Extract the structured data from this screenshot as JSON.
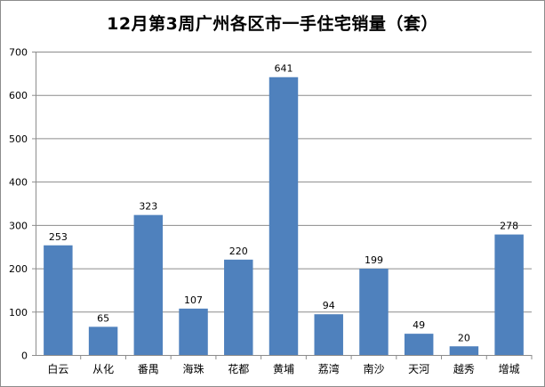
{
  "chart_data": {
    "type": "bar",
    "title": "12月第3周广州各区市一手住宅销量（套）",
    "categories": [
      "白云",
      "从化",
      "番禺",
      "海珠",
      "花都",
      "黄埔",
      "荔湾",
      "南沙",
      "天河",
      "越秀",
      "增城"
    ],
    "values": [
      253,
      65,
      323,
      107,
      220,
      641,
      94,
      199,
      49,
      20,
      278
    ],
    "ylim": [
      0,
      700
    ],
    "yticks": [
      "0",
      "100",
      "200",
      "300",
      "400",
      "500",
      "600",
      "700"
    ],
    "grid": true,
    "legend": "none",
    "bar_color": "#4f81bd"
  }
}
